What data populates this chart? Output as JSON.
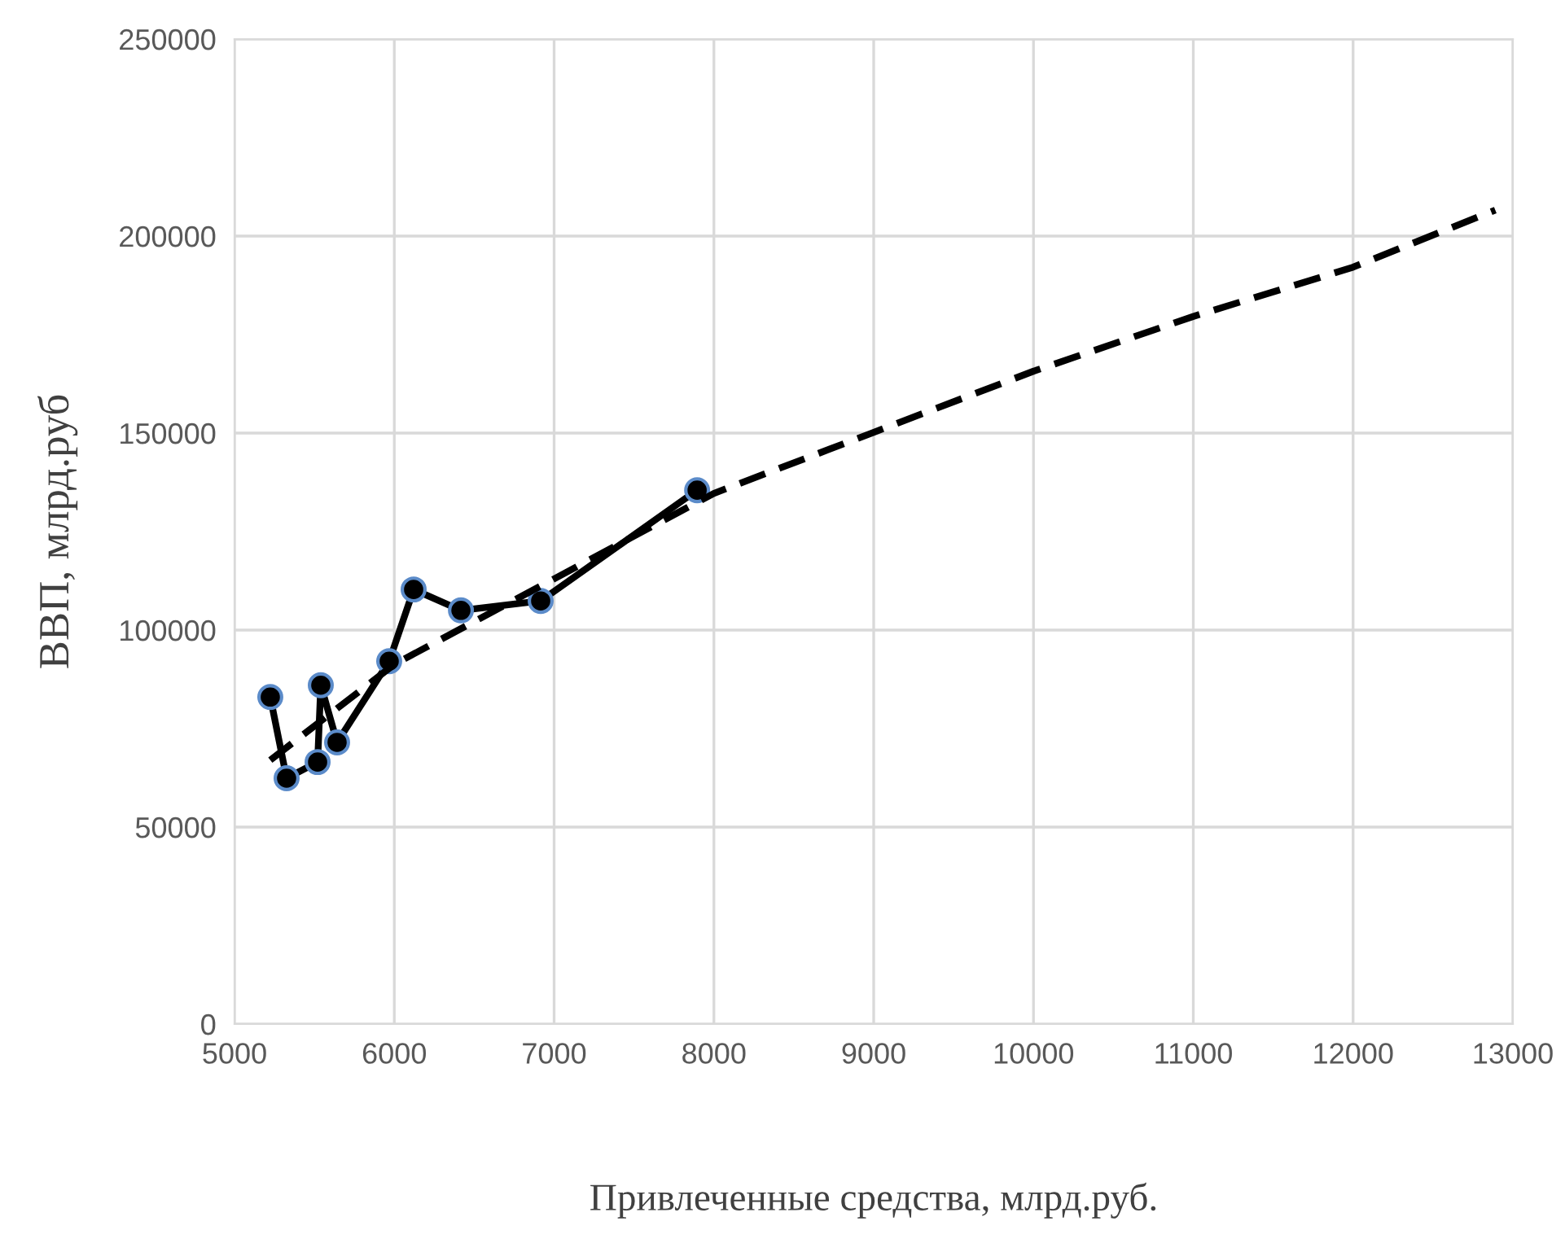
{
  "chart_data": {
    "type": "line",
    "xlabel": "Привлеченные средства, млрд.руб.",
    "ylabel": "ВВП, млрд.руб",
    "xlim": [
      5000,
      13000
    ],
    "xticks": [
      5000,
      6000,
      7000,
      8000,
      9000,
      10000,
      11000,
      12000,
      13000
    ],
    "ylim": [
      0,
      250000
    ],
    "yticks": [
      0,
      50000,
      100000,
      150000,
      200000,
      250000
    ],
    "grid": true,
    "series": [
      {
        "color": "#000000",
        "marker": "circle",
        "line_style": "solid",
        "x": [
          5224,
          5326,
          5520,
          5540,
          5642,
          5968,
          6121,
          6417,
          6916,
          7895
        ],
        "values": [
          83000,
          62400,
          66500,
          86000,
          71500,
          92100,
          110300,
          105000,
          107400,
          135500
        ]
      },
      {
        "color": "#000000",
        "marker": "none",
        "line_style": "dashed",
        "x": [
          5224,
          6000,
          7000,
          8000,
          9000,
          10000,
          11000,
          12000,
          12890
        ],
        "values": [
          67000,
          91300,
          113000,
          134700,
          150200,
          165700,
          179600,
          192100,
          206600
        ]
      }
    ]
  }
}
